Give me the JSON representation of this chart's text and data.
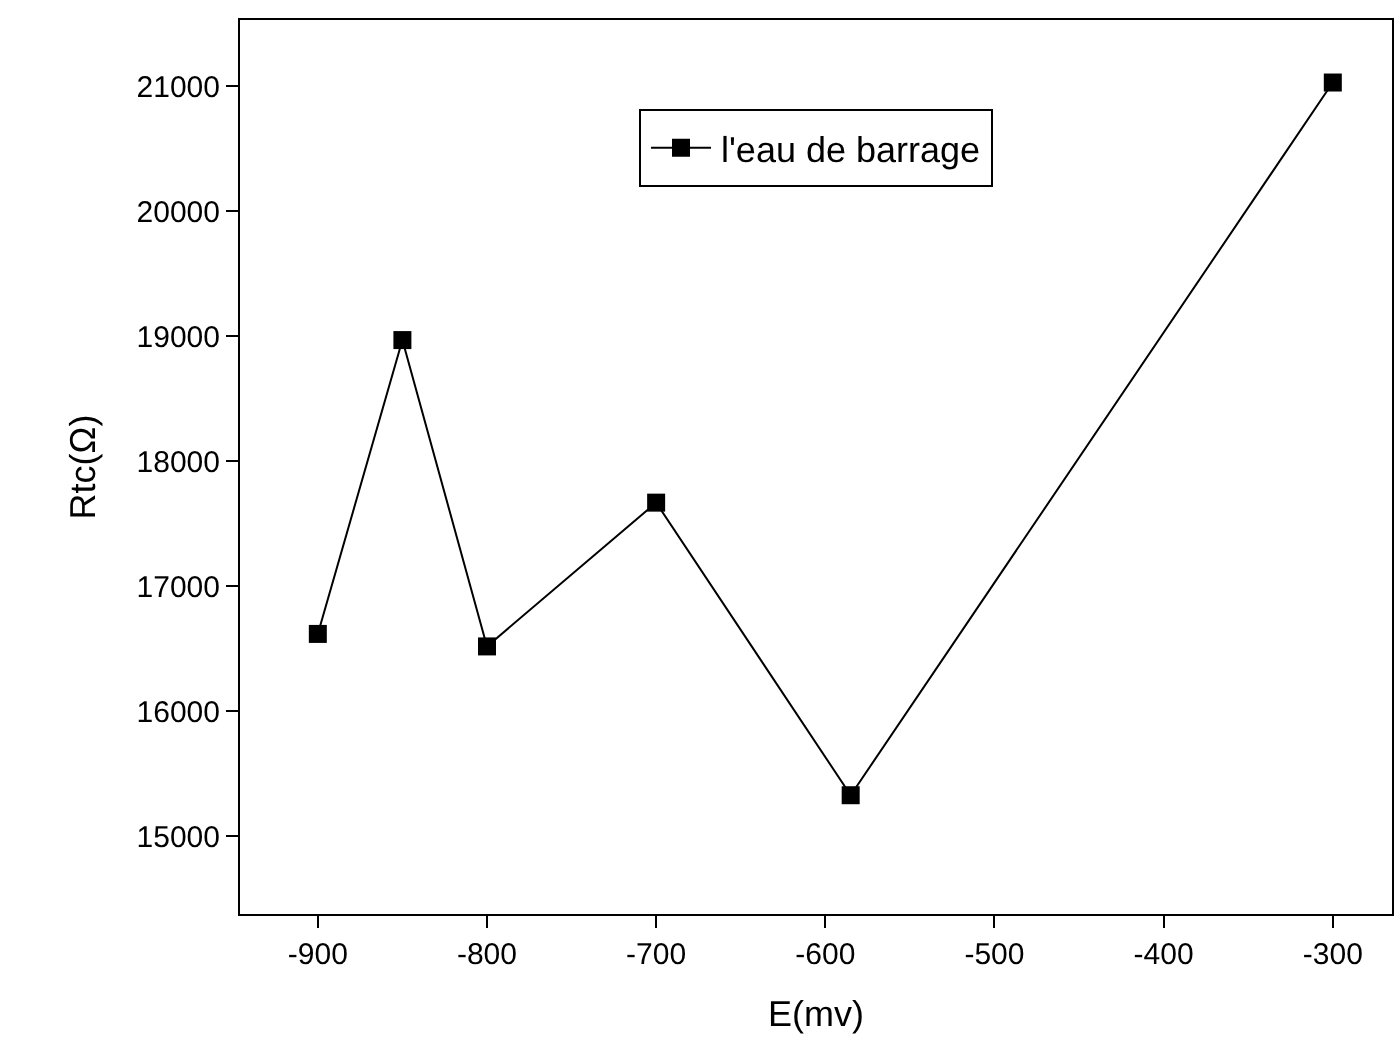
{
  "chart_data": {
    "type": "line",
    "xlabel": "E(mv)",
    "ylabel": "Rtc(Ω)",
    "x": [
      -900,
      -850,
      -800,
      -700,
      -585,
      -300
    ],
    "series": [
      {
        "name": "l'eau de barrage",
        "color": "#000000",
        "values": [
          16620,
          18970,
          16520,
          17670,
          15330,
          21030
        ]
      }
    ],
    "xlim": [
      -946,
      -265
    ],
    "xticks": [
      -900,
      -800,
      -700,
      -600,
      -500,
      -400,
      -300
    ],
    "ylim": [
      14380,
      21530
    ],
    "yticks": [
      15000,
      16000,
      17000,
      18000,
      19000,
      20000,
      21000
    ],
    "marker": "square",
    "line_style": "solid",
    "legend": "top"
  }
}
